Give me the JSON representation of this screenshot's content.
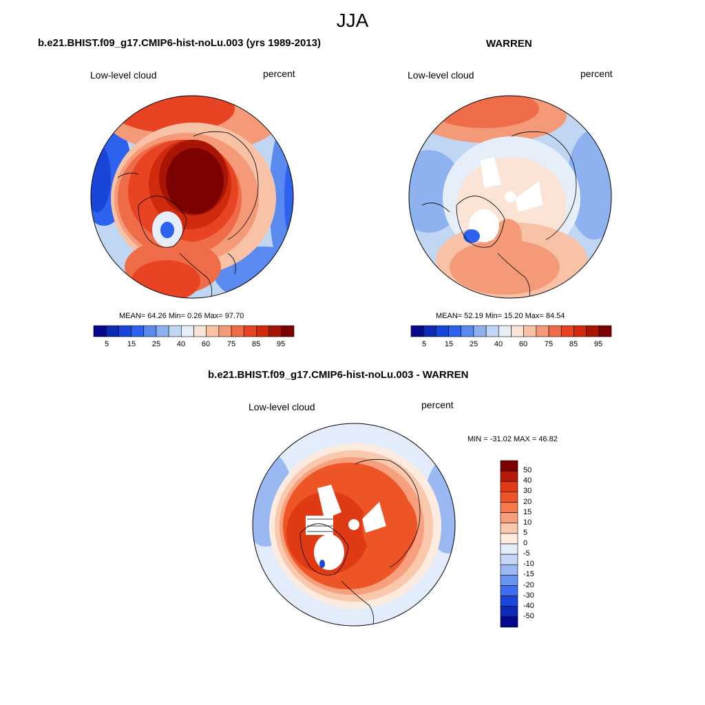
{
  "title": "JJA",
  "panels": [
    {
      "title": "b.e21.BHIST.f09_g17.CMIP6-hist-noLu.003 (yrs 1989-2013)",
      "left_label": "Low-level cloud",
      "right_label": "percent",
      "stats": "MEAN=  64.26  Min=   0.26  Max=  97.70"
    },
    {
      "title": "WARREN",
      "left_label": "Low-level cloud",
      "right_label": "percent",
      "stats": "MEAN=  52.19  Min=  15.20  Max=  84.54"
    },
    {
      "title": "b.e21.BHIST.f09_g17.CMIP6-hist-noLu.003 - WARREN",
      "left_label": "Low-level cloud",
      "right_label": "percent",
      "stats": "MIN = -31.02 MAX =  46.82"
    }
  ],
  "colorbar_abs": {
    "ticks": [
      "5",
      "15",
      "25",
      "40",
      "60",
      "75",
      "85",
      "95"
    ],
    "colors": [
      "#08088c",
      "#0d2ab4",
      "#1846d9",
      "#2d62ee",
      "#5a8aef",
      "#8eb2f0",
      "#c0d6f3",
      "#e6eefa",
      "#fbe3d6",
      "#f8c2a6",
      "#f49a78",
      "#ee6c47",
      "#e84322",
      "#d02a0c",
      "#a81505",
      "#7c0202"
    ]
  },
  "colorbar_diff": {
    "ticks": [
      "50",
      "40",
      "30",
      "20",
      "15",
      "10",
      "5",
      "0",
      "-5",
      "-10",
      "-15",
      "-20",
      "-30",
      "-40",
      "-50"
    ],
    "colors": [
      "#7c0202",
      "#b51a06",
      "#e03a14",
      "#ee5526",
      "#f47a4b",
      "#f7a07d",
      "#fac8ad",
      "#fdebe0",
      "#e3ecfa",
      "#c2d5f4",
      "#9ab8f1",
      "#6a95ef",
      "#3e6ded",
      "#1b47d9",
      "#0d2ab4",
      "#08088c"
    ]
  }
}
